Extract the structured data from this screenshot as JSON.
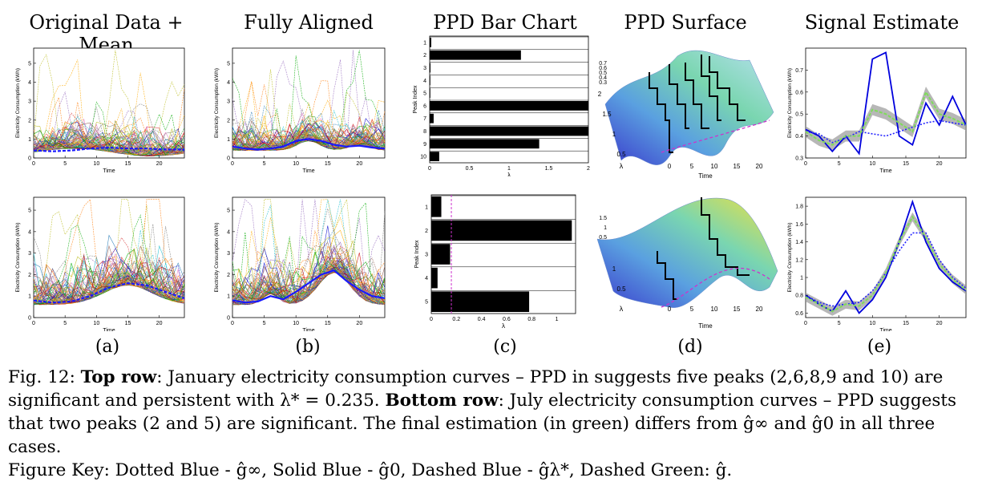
{
  "column_titles": [
    "Original Data + Mean",
    "Fully Aligned",
    "PPD Bar Chart",
    "PPD Surface",
    "Signal Estimate"
  ],
  "sub_labels": [
    "(a)",
    "(b)",
    "(c)",
    "(d)",
    "(e)"
  ],
  "caption": {
    "line1_prefix": "Fig. 12: ",
    "line1_bold": "Top row",
    "line1_text": ": January electricity consumption curves – PPD in suggests five peaks (2,6,8,9 and 10) are significant and persistent with λ* = 0.235. ",
    "line1_bold2": "Bottom row",
    "line1_text2": ": July electricity consumption curves – PPD suggests that two peaks (2 and 5) are significant. The final estimation (in green) differs from ĝ∞ and ĝ0 in all three cases.",
    "key": "Figure Key: Dotted Blue - ĝ∞, Solid Blue - ĝ0, Dashed Blue - ĝλ*, Dashed Green: ĝ."
  },
  "axis_text": {
    "time": "Time",
    "electricity": "Electricity Consumption (kWh)",
    "peak_index": "Peak Index",
    "lambda": "λ"
  },
  "chart_data": [
    {
      "type": "line",
      "panel": "a-top",
      "xlim": [
        0,
        24
      ],
      "ylim": [
        0,
        5.8
      ],
      "xticks": [
        "0",
        "5",
        "10",
        "15",
        "20"
      ],
      "yticks": [
        "0",
        "1",
        "2",
        "3",
        "4",
        "5"
      ],
      "xlabel": "Time",
      "ylabel": "Electricity Consumption (kWh)",
      "series": [
        {
          "x": [
            0,
            3,
            6,
            9,
            12,
            15,
            18,
            21,
            24
          ],
          "values": [
            0.4,
            0.35,
            0.4,
            0.5,
            0.55,
            0.5,
            0.5,
            0.45,
            0.45
          ]
        }
      ]
    },
    {
      "type": "line",
      "panel": "b-top",
      "xlim": [
        0,
        24
      ],
      "ylim": [
        0,
        5.8
      ],
      "xticks": [
        "0",
        "5",
        "10",
        "15",
        "20"
      ],
      "yticks": [
        "0",
        "1",
        "2",
        "3",
        "4",
        "5"
      ],
      "xlabel": "Time",
      "ylabel": "Electricity Consumption (kWh)",
      "series": [
        {
          "x": [
            0,
            2,
            4,
            6,
            8,
            10,
            12,
            14,
            16,
            18,
            20,
            22,
            24
          ],
          "values": [
            0.6,
            0.5,
            0.45,
            0.5,
            0.6,
            0.9,
            1.0,
            0.9,
            0.7,
            0.6,
            0.65,
            0.55,
            0.5
          ]
        }
      ]
    },
    {
      "type": "bar",
      "panel": "c-top",
      "orientation": "horizontal",
      "categories": [
        "1",
        "2",
        "3",
        "4",
        "5",
        "6",
        "7",
        "8",
        "9",
        "10"
      ],
      "values": [
        0.02,
        1.15,
        0.01,
        0.0,
        0.0,
        2.0,
        0.05,
        2.0,
        1.38,
        0.12
      ],
      "xlim": [
        0,
        2
      ],
      "xticks": [
        "0",
        "0.5",
        "1",
        "1.5",
        "2"
      ],
      "xlabel": "λ",
      "ylabel": "Peak Index"
    },
    {
      "type": "bar",
      "panel": "c-bottom",
      "orientation": "horizontal",
      "categories": [
        "1",
        "2",
        "3",
        "4",
        "5"
      ],
      "values": [
        0.08,
        1.12,
        0.15,
        0.05,
        0.78
      ],
      "xlim": [
        0,
        1.15
      ],
      "xticks": [
        "0",
        "0.2",
        "0.4",
        "0.6",
        "0.8",
        "1"
      ],
      "xlabel": "λ",
      "ylabel": "Peak Index",
      "threshold": 0.16
    },
    {
      "type": "line",
      "panel": "a-bottom",
      "xlim": [
        0,
        24
      ],
      "ylim": [
        0,
        5.6
      ],
      "xticks": [
        "0",
        "5",
        "10",
        "15",
        "20"
      ],
      "yticks": [
        "0",
        "1",
        "2",
        "3",
        "4",
        "5"
      ],
      "xlabel": "Time",
      "ylabel": "Electricity Consumption (kWh)",
      "series": [
        {
          "x": [
            0,
            3,
            6,
            9,
            12,
            15,
            18,
            21,
            24
          ],
          "values": [
            0.8,
            0.7,
            0.75,
            1.0,
            1.4,
            1.6,
            1.5,
            1.2,
            0.9
          ]
        }
      ]
    },
    {
      "type": "line",
      "panel": "b-bottom",
      "xlim": [
        0,
        24
      ],
      "ylim": [
        0,
        5.6
      ],
      "xticks": [
        "0",
        "5",
        "10",
        "15",
        "20"
      ],
      "yticks": [
        "0",
        "1",
        "2",
        "3",
        "4",
        "5"
      ],
      "xlabel": "Time",
      "ylabel": "Electricity Consumption (kWh)",
      "series": [
        {
          "x": [
            0,
            2,
            4,
            6,
            8,
            10,
            12,
            14,
            16,
            18,
            20,
            22,
            24
          ],
          "values": [
            0.8,
            0.7,
            0.75,
            1.0,
            0.85,
            1.2,
            1.6,
            2.0,
            2.2,
            1.7,
            1.3,
            1.0,
            0.9
          ]
        }
      ]
    },
    {
      "type": "line",
      "panel": "e-top",
      "xlim": [
        0,
        24
      ],
      "ylim": [
        0.3,
        0.8
      ],
      "xticks": [
        "0",
        "5",
        "10",
        "15",
        "20"
      ],
      "yticks": [
        "0.3",
        "0.4",
        "0.5",
        "0.6",
        "0.7"
      ],
      "xlabel": "Time",
      "ylabel": "Electricity Consumption (kWh)",
      "series": [
        {
          "x": [
            0,
            2,
            4,
            6,
            8,
            10,
            12,
            14,
            16,
            18,
            20,
            22,
            24
          ],
          "values": [
            0.43,
            0.4,
            0.33,
            0.4,
            0.32,
            0.75,
            0.78,
            0.4,
            0.36,
            0.55,
            0.45,
            0.58,
            0.45
          ]
        },
        {
          "x": [
            0,
            2,
            4,
            6,
            8,
            10,
            12,
            14,
            16,
            18,
            20,
            22,
            24
          ],
          "values": [
            0.42,
            0.41,
            0.37,
            0.39,
            0.42,
            0.41,
            0.4,
            0.42,
            0.44,
            0.46,
            0.47,
            0.46,
            0.45
          ]
        },
        {
          "x": [
            0,
            2,
            4,
            6,
            8,
            10,
            12,
            14,
            16,
            18,
            20,
            22,
            24
          ],
          "values": [
            0.42,
            0.38,
            0.36,
            0.4,
            0.4,
            0.52,
            0.5,
            0.46,
            0.42,
            0.6,
            0.5,
            0.48,
            0.45
          ]
        }
      ]
    },
    {
      "type": "line",
      "panel": "e-bottom",
      "xlim": [
        0,
        24
      ],
      "ylim": [
        0.55,
        1.9
      ],
      "xticks": [
        "0",
        "5",
        "10",
        "15",
        "20"
      ],
      "yticks": [
        "0.6",
        "0.8",
        "1",
        "1.2",
        "1.4",
        "1.6",
        "1.8"
      ],
      "xlabel": "Time",
      "ylabel": "Electricity Consumption (kWh)",
      "series": [
        {
          "x": [
            0,
            2,
            4,
            6,
            8,
            10,
            12,
            14,
            16,
            18,
            20,
            22,
            24
          ],
          "values": [
            0.8,
            0.7,
            0.62,
            0.85,
            0.6,
            0.75,
            1.0,
            1.4,
            1.85,
            1.4,
            1.1,
            0.95,
            0.85
          ]
        },
        {
          "x": [
            0,
            2,
            4,
            6,
            8,
            10,
            12,
            14,
            16,
            18,
            20,
            22,
            24
          ],
          "values": [
            0.8,
            0.72,
            0.68,
            0.7,
            0.72,
            0.85,
            1.05,
            1.3,
            1.5,
            1.5,
            1.2,
            1.0,
            0.88
          ]
        },
        {
          "x": [
            0,
            2,
            4,
            6,
            8,
            10,
            12,
            14,
            16,
            18,
            20,
            22,
            24
          ],
          "values": [
            0.78,
            0.7,
            0.62,
            0.7,
            0.68,
            0.8,
            1.05,
            1.4,
            1.68,
            1.45,
            1.15,
            0.98,
            0.86
          ]
        }
      ]
    },
    {
      "type": "area",
      "panel": "d-top",
      "x_label": "Time",
      "y_label": "λ",
      "xticks": [
        "0",
        "5",
        "10",
        "15",
        "20"
      ],
      "yticks": [
        "0.5",
        "1",
        "1.5",
        "2"
      ],
      "zticks": [
        "0.3",
        "0.4",
        "0.5",
        "0.6",
        "0.7"
      ]
    },
    {
      "type": "area",
      "panel": "d-bottom",
      "x_label": "Time",
      "y_label": "λ",
      "xticks": [
        "0",
        "5",
        "10",
        "15",
        "20"
      ],
      "yticks": [
        "0.5",
        "1"
      ],
      "zticks": [
        "0.5",
        "1",
        "1.5"
      ]
    }
  ]
}
